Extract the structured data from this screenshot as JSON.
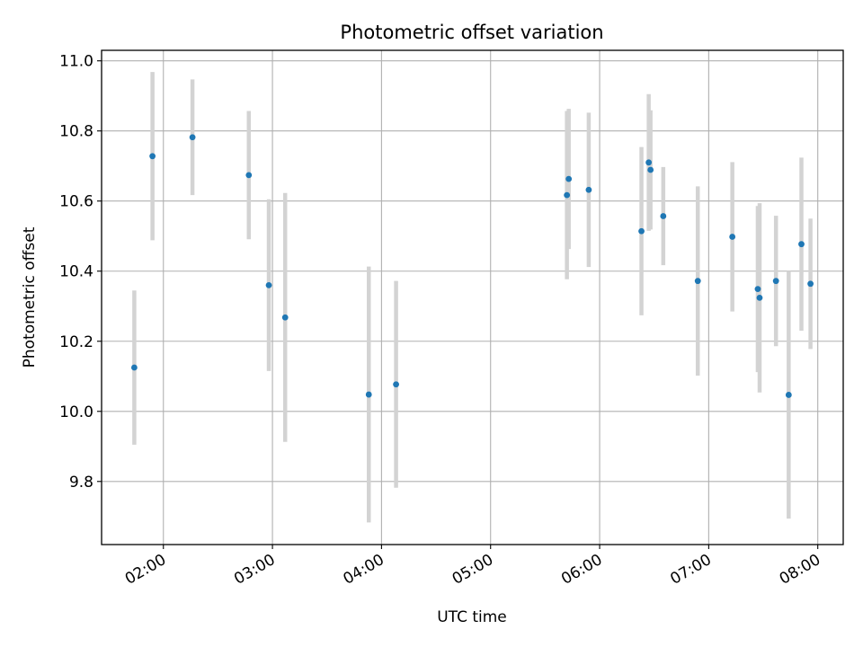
{
  "chart_data": {
    "type": "scatter",
    "title": "Photometric offset variation",
    "xlabel": "UTC time",
    "ylabel": "Photometric offset",
    "x_ticks": [
      "02:00",
      "03:00",
      "04:00",
      "05:00",
      "06:00",
      "07:00",
      "08:00"
    ],
    "y_ticks": [
      "9.8",
      "10.0",
      "10.2",
      "10.4",
      "10.6",
      "10.8",
      "11.0"
    ],
    "xlim": [
      "01:26",
      "08:14"
    ],
    "ylim": [
      9.62,
      11.03
    ],
    "grid": true,
    "colors": {
      "point": "#1f77b4",
      "errorbar": "#d3d3d3",
      "grid": "#b0b0b0"
    },
    "series": [
      {
        "x": [
          "01:44",
          "01:54",
          "02:16",
          "02:47",
          "02:58",
          "03:07",
          "03:53",
          "04:08",
          "05:42",
          "05:43",
          "05:54",
          "06:23",
          "06:27",
          "06:28",
          "06:35",
          "06:54",
          "07:13",
          "07:27",
          "07:28",
          "07:37",
          "07:44",
          "07:51",
          "07:56"
        ],
        "y": [
          10.125,
          10.728,
          10.782,
          10.674,
          10.36,
          10.268,
          10.048,
          10.077,
          10.617,
          10.663,
          10.632,
          10.514,
          10.71,
          10.689,
          10.557,
          10.372,
          10.498,
          10.349,
          10.324,
          10.372,
          10.047,
          10.477,
          10.364
        ],
        "yerr": [
          0.22,
          0.24,
          0.165,
          0.183,
          0.245,
          0.355,
          0.365,
          0.295,
          0.24,
          0.2,
          0.22,
          0.24,
          0.195,
          0.17,
          0.14,
          0.27,
          0.213,
          0.237,
          0.27,
          0.186,
          0.353,
          0.247,
          0.186
        ]
      }
    ]
  }
}
